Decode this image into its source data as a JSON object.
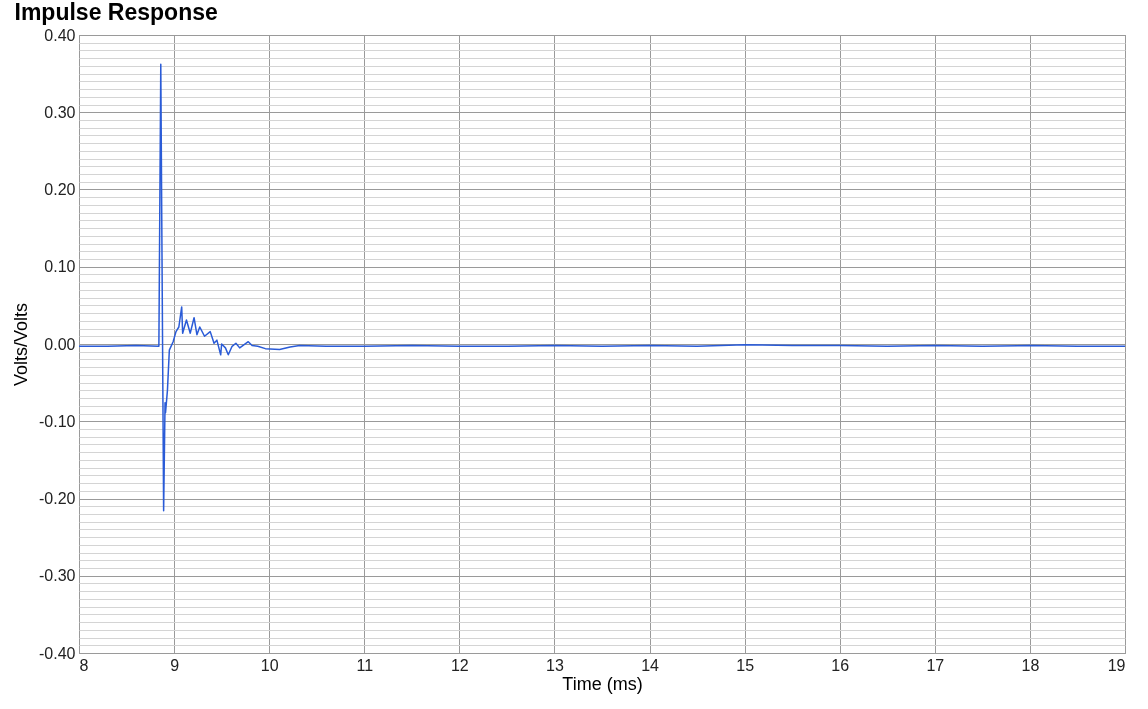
{
  "chart_data": {
    "type": "line",
    "title": "Impulse Response",
    "xlabel": "Time (ms)",
    "ylabel": "Volts/Volts",
    "xlim": [
      8,
      19
    ],
    "xticks": [
      8,
      9,
      10,
      11,
      12,
      13,
      14,
      15,
      16,
      17,
      18,
      19
    ],
    "ylim": [
      -0.4,
      0.4
    ],
    "yticks": [
      {
        "value": -0.4,
        "label": "-0.40"
      },
      {
        "value": -0.39,
        "label": null
      },
      {
        "value": -0.38,
        "label": null
      },
      {
        "value": -0.37,
        "label": null
      },
      {
        "value": -0.36,
        "label": null
      },
      {
        "value": -0.35,
        "label": null
      },
      {
        "value": -0.34,
        "label": null
      },
      {
        "value": -0.33,
        "label": null
      },
      {
        "value": -0.32,
        "label": null
      },
      {
        "value": -0.31,
        "label": null
      },
      {
        "value": -0.3,
        "label": "-0.30"
      },
      {
        "value": -0.29,
        "label": null
      },
      {
        "value": -0.28,
        "label": null
      },
      {
        "value": -0.27,
        "label": null
      },
      {
        "value": -0.26,
        "label": null
      },
      {
        "value": -0.25,
        "label": null
      },
      {
        "value": -0.24,
        "label": null
      },
      {
        "value": -0.23,
        "label": null
      },
      {
        "value": -0.22,
        "label": null
      },
      {
        "value": -0.21,
        "label": null
      },
      {
        "value": -0.2,
        "label": "-0.20"
      },
      {
        "value": -0.19,
        "label": null
      },
      {
        "value": -0.18,
        "label": null
      },
      {
        "value": -0.17,
        "label": null
      },
      {
        "value": -0.16,
        "label": null
      },
      {
        "value": -0.15,
        "label": null
      },
      {
        "value": -0.14,
        "label": null
      },
      {
        "value": -0.13,
        "label": null
      },
      {
        "value": -0.12,
        "label": null
      },
      {
        "value": -0.11,
        "label": null
      },
      {
        "value": -0.1,
        "label": "-0.10"
      },
      {
        "value": -0.09,
        "label": null
      },
      {
        "value": -0.08,
        "label": null
      },
      {
        "value": -0.07,
        "label": null
      },
      {
        "value": -0.06,
        "label": null
      },
      {
        "value": -0.05,
        "label": null
      },
      {
        "value": -0.04,
        "label": null
      },
      {
        "value": -0.03,
        "label": null
      },
      {
        "value": -0.02,
        "label": null
      },
      {
        "value": -0.01,
        "label": null
      },
      {
        "value": 0,
        "label": "0.00"
      },
      {
        "value": 0.01,
        "label": null
      },
      {
        "value": 0.02,
        "label": null
      },
      {
        "value": 0.03,
        "label": null
      },
      {
        "value": 0.04,
        "label": null
      },
      {
        "value": 0.05,
        "label": null
      },
      {
        "value": 0.06,
        "label": null
      },
      {
        "value": 0.07,
        "label": null
      },
      {
        "value": 0.08,
        "label": null
      },
      {
        "value": 0.09,
        "label": null
      },
      {
        "value": 0.1,
        "label": "0.10"
      },
      {
        "value": 0.11,
        "label": null
      },
      {
        "value": 0.12,
        "label": null
      },
      {
        "value": 0.13,
        "label": null
      },
      {
        "value": 0.14,
        "label": null
      },
      {
        "value": 0.15,
        "label": null
      },
      {
        "value": 0.16,
        "label": null
      },
      {
        "value": 0.17,
        "label": null
      },
      {
        "value": 0.18,
        "label": null
      },
      {
        "value": 0.19,
        "label": null
      },
      {
        "value": 0.2,
        "label": "0.20"
      },
      {
        "value": 0.21,
        "label": null
      },
      {
        "value": 0.22,
        "label": null
      },
      {
        "value": 0.23,
        "label": null
      },
      {
        "value": 0.24,
        "label": null
      },
      {
        "value": 0.25,
        "label": null
      },
      {
        "value": 0.26,
        "label": null
      },
      {
        "value": 0.27,
        "label": null
      },
      {
        "value": 0.28,
        "label": null
      },
      {
        "value": 0.29,
        "label": null
      },
      {
        "value": 0.3,
        "label": "0.30"
      },
      {
        "value": 0.31,
        "label": null
      },
      {
        "value": 0.32,
        "label": null
      },
      {
        "value": 0.33,
        "label": null
      },
      {
        "value": 0.34,
        "label": null
      },
      {
        "value": 0.35,
        "label": null
      },
      {
        "value": 0.36,
        "label": null
      },
      {
        "value": 0.37,
        "label": null
      },
      {
        "value": 0.38,
        "label": null
      },
      {
        "value": 0.39,
        "label": null
      },
      {
        "value": 0.4,
        "label": "0.40"
      }
    ],
    "grid": true,
    "line_style": "solid",
    "series": [
      {
        "color": "#2a5bd7",
        "x": [
          8,
          8.3,
          8.6,
          8.84,
          8.86,
          8.89,
          8.905,
          8.91,
          8.93,
          8.95,
          8.99,
          9.02,
          9.05,
          9.08,
          9.09,
          9.13,
          9.17,
          9.21,
          9.24,
          9.27,
          9.32,
          9.38,
          9.42,
          9.45,
          9.49,
          9.5,
          9.54,
          9.57,
          9.61,
          9.65,
          9.69,
          9.78,
          9.82,
          9.88,
          9.96,
          10.11,
          10.22,
          10.32,
          10.6,
          11,
          11.5,
          12,
          12.5,
          13,
          13.5,
          14,
          14.5,
          15,
          15.5,
          16,
          16.5,
          17,
          17.5,
          18,
          18.5,
          19
        ],
        "values": [
          -0.003,
          -0.003,
          -0.002,
          -0.003,
          0.362,
          -0.216,
          -0.076,
          -0.089,
          -0.06,
          -0.008,
          0.003,
          0.016,
          0.022,
          0.048,
          0.014,
          0.031,
          0.014,
          0.034,
          0.012,
          0.022,
          0.01,
          0.016,
          0.001,
          0.005,
          -0.014,
          0,
          -0.005,
          -0.014,
          -0.003,
          0.001,
          -0.005,
          0.003,
          -0.002,
          -0.003,
          -0.006,
          -0.007,
          -0.004,
          -0.002,
          -0.003,
          -0.003,
          -0.002,
          -0.003,
          -0.003,
          -0.002,
          -0.003,
          -0.002,
          -0.003,
          -0.001,
          -0.002,
          -0.002,
          -0.003,
          -0.002,
          -0.003,
          -0.002,
          -0.003,
          -0.003
        ]
      }
    ]
  }
}
